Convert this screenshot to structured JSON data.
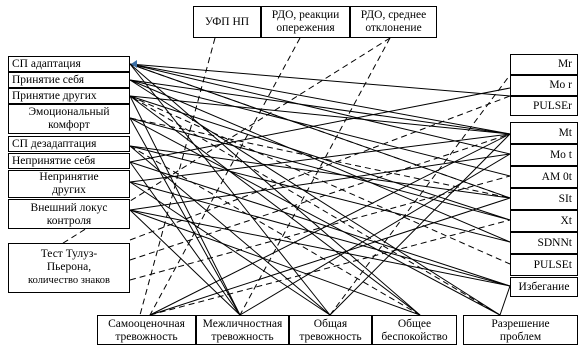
{
  "top": {
    "ufp": "УФП НП",
    "rdo_reaction_1": "РДО, реакции",
    "rdo_reaction_2": "опережения",
    "rdo_mean_1": "РДО, среднее",
    "rdo_mean_2": "отклонение"
  },
  "left": {
    "sp_adapt": "СП адаптация",
    "self_accept": "Принятие себя",
    "others_accept": "Принятие других",
    "emo_1": "Эмоциональный",
    "emo_2": "комфорт",
    "sp_disadapt": "СП дезадаптация",
    "self_reject": "Непринятие себя",
    "others_reject_1": "Непринятие",
    "others_reject_2": "других",
    "locus_1": "Внешний локус",
    "locus_2": "контроля",
    "test_1": "Тест Тулуз-",
    "test_2": "Пьерона,",
    "test_3": "количество знаков"
  },
  "right": {
    "mr": "Mr",
    "mor": "Mo r",
    "pulser": "PULSEr",
    "mt": "Mt",
    "mot": "Mo t",
    "amot": "AM 0t",
    "sit": "SIt",
    "xt": "Xt",
    "sdnnt": "SDNNt",
    "pulset": "PULSEt",
    "avoid": "Избегание"
  },
  "bottom": {
    "self_anx_1": "Самооценочная",
    "self_anx_2": "тревожность",
    "inter_anx_1": "Межличностная",
    "inter_anx_2": "тревожность",
    "gen_anx_1": "Общая",
    "gen_anx_2": "тревожность",
    "gen_worry_1": "Общее",
    "gen_worry_2": "беспокойство",
    "resolve_1": "Разрешение",
    "resolve_2": "проблем"
  }
}
